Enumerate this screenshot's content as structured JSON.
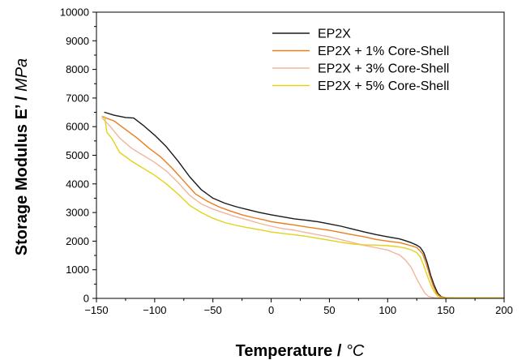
{
  "chart_data": {
    "type": "line",
    "xlabel": "Temperature",
    "xunit": "°C",
    "ylabel": "Storage Modulus E’",
    "yunit": "MPa",
    "xlim": [
      -150,
      200
    ],
    "ylim": [
      0,
      10000
    ],
    "xticks": [
      -150,
      -100,
      -50,
      0,
      50,
      100,
      150,
      200
    ],
    "yticks": [
      0,
      1000,
      2000,
      3000,
      4000,
      5000,
      6000,
      7000,
      8000,
      9000,
      10000
    ],
    "grid": false,
    "legend_position": "top-right",
    "series": [
      {
        "name": "EP2X",
        "color": "#1a1a1a",
        "x": [
          -143,
          -135,
          -125,
          -118,
          -110,
          -100,
          -90,
          -80,
          -70,
          -60,
          -50,
          -40,
          -30,
          -20,
          -10,
          0,
          10,
          20,
          30,
          40,
          50,
          60,
          70,
          80,
          90,
          100,
          110,
          115,
          120,
          125,
          128,
          131,
          134,
          137,
          140,
          143,
          146,
          150,
          160,
          200
        ],
        "y": [
          6500,
          6400,
          6320,
          6300,
          6050,
          5700,
          5300,
          4800,
          4250,
          3800,
          3500,
          3330,
          3200,
          3100,
          3000,
          2920,
          2850,
          2780,
          2730,
          2680,
          2600,
          2520,
          2420,
          2320,
          2230,
          2150,
          2080,
          2020,
          1950,
          1860,
          1780,
          1600,
          1250,
          800,
          450,
          180,
          60,
          20,
          10,
          10
        ]
      },
      {
        "name": "EP2X + 1% Core-Shell",
        "color": "#e87e1f",
        "x": [
          -145,
          -135,
          -125,
          -115,
          -105,
          -95,
          -85,
          -75,
          -65,
          -55,
          -45,
          -35,
          -25,
          -15,
          -5,
          0,
          10,
          20,
          30,
          40,
          50,
          60,
          70,
          80,
          90,
          100,
          110,
          115,
          120,
          125,
          130,
          133,
          136,
          139,
          142,
          145,
          150,
          160,
          200
        ],
        "y": [
          6350,
          6200,
          5900,
          5600,
          5250,
          4950,
          4550,
          4100,
          3650,
          3400,
          3200,
          3050,
          2920,
          2820,
          2730,
          2680,
          2620,
          2560,
          2500,
          2440,
          2380,
          2300,
          2220,
          2150,
          2060,
          2000,
          1950,
          1900,
          1840,
          1780,
          1560,
          1220,
          820,
          450,
          180,
          60,
          20,
          10,
          10
        ]
      },
      {
        "name": "EP2X + 3% Core-Shell",
        "color": "#f2b59c",
        "x": [
          -145,
          -138,
          -130,
          -120,
          -110,
          -100,
          -90,
          -80,
          -70,
          -60,
          -50,
          -40,
          -30,
          -20,
          -10,
          0,
          10,
          20,
          30,
          40,
          50,
          60,
          70,
          80,
          90,
          100,
          105,
          110,
          115,
          120,
          123,
          126,
          129,
          132,
          135,
          140,
          150,
          200
        ],
        "y": [
          6300,
          6000,
          5600,
          5250,
          5000,
          4750,
          4450,
          4050,
          3600,
          3300,
          3120,
          2980,
          2850,
          2740,
          2620,
          2520,
          2440,
          2380,
          2300,
          2220,
          2150,
          2050,
          1950,
          1850,
          1770,
          1690,
          1600,
          1520,
          1350,
          1100,
          850,
          600,
          380,
          180,
          70,
          20,
          10,
          10
        ]
      },
      {
        "name": "EP2X + 5% Core-Shell",
        "color": "#e3d21a",
        "x": [
          -143,
          -141,
          -137,
          -130,
          -120,
          -110,
          -100,
          -90,
          -80,
          -70,
          -60,
          -50,
          -40,
          -30,
          -20,
          -10,
          0,
          10,
          20,
          30,
          40,
          50,
          60,
          70,
          80,
          90,
          100,
          110,
          115,
          120,
          125,
          128,
          131,
          134,
          137,
          140,
          143,
          146,
          150,
          160,
          200
        ],
        "y": [
          6350,
          5800,
          5600,
          5100,
          4800,
          4550,
          4300,
          4000,
          3650,
          3250,
          3000,
          2800,
          2650,
          2550,
          2470,
          2400,
          2320,
          2270,
          2220,
          2170,
          2100,
          2030,
          1960,
          1900,
          1870,
          1860,
          1840,
          1800,
          1760,
          1700,
          1600,
          1450,
          1150,
          800,
          480,
          230,
          80,
          30,
          10,
          10,
          10
        ]
      }
    ]
  }
}
